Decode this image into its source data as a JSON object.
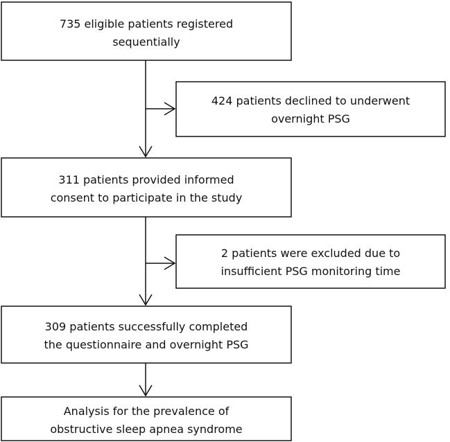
{
  "nodes": [
    {
      "lines": [
        "735 eligible patients registered",
        "sequentially"
      ]
    },
    {
      "lines": [
        "424 patients declined to underwent",
        "overnight PSG"
      ]
    },
    {
      "lines": [
        "311 patients provided informed",
        "consent to participate in the study"
      ]
    },
    {
      "lines": [
        "2 patients were excluded due to",
        "insufficient PSG monitoring time"
      ]
    },
    {
      "lines": [
        "309 patients successfully completed",
        "the questionnaire and overnight PSG"
      ]
    },
    {
      "lines": [
        "Analysis for the prevalence of",
        "obstructive sleep apnea syndrome"
      ]
    }
  ]
}
